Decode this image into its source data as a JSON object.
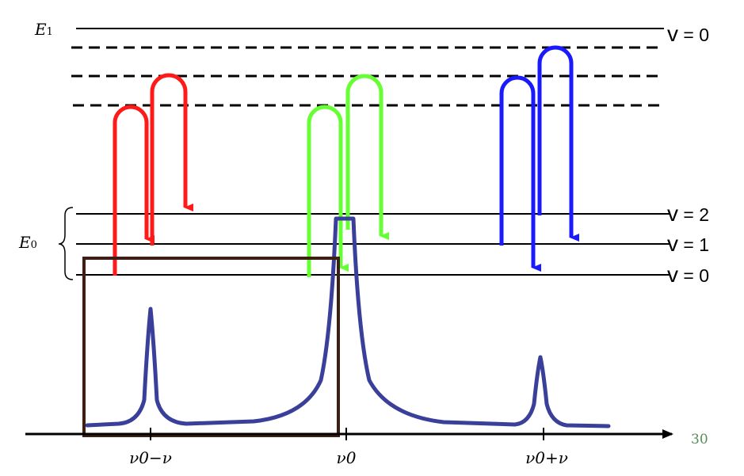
{
  "labels": {
    "e1": {
      "base": "E",
      "sub": "1"
    },
    "e0": {
      "base": "E",
      "sub": "0"
    },
    "v_upper": {
      "sym": "v",
      "rest": " = 0"
    },
    "v2": {
      "sym": "v",
      "rest": " = 2"
    },
    "v1": {
      "sym": "v",
      "rest": " = 1"
    },
    "v0": {
      "sym": "v",
      "rest": " = 0"
    },
    "axis_stokes": "ν0−ν",
    "axis_rayleigh": "ν0",
    "axis_antistokes": "ν0+ν",
    "page_number": "30"
  },
  "colors": {
    "stokes": "#ff1a1a",
    "rayleigh": "#66ff33",
    "antistokes": "#1a1aff",
    "spectrum": "#3a3f9a",
    "box": "#3d1f14",
    "page_number": "#5a8a5a"
  },
  "spectrum_peaks": [
    {
      "name": "stokes",
      "relative_height": 0.42
    },
    {
      "name": "rayleigh",
      "relative_height": 1.0
    },
    {
      "name": "antistokes",
      "relative_height": 0.28
    }
  ]
}
